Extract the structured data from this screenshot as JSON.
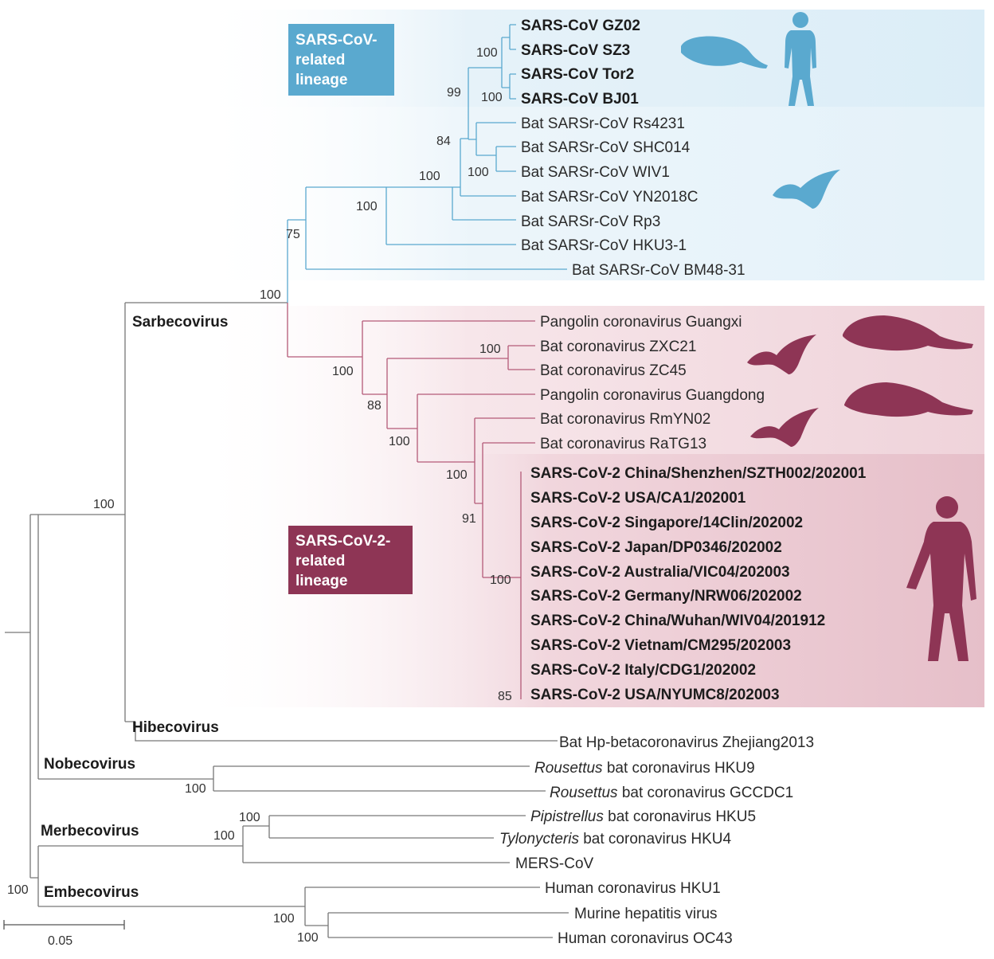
{
  "colors": {
    "sars_lineage": "#5aa9cf",
    "sars_bg": "#ddeef7",
    "sars2_lineage": "#8e3555",
    "sars2_bg": "#f3dde3",
    "sars2_bg_dark": "#ebc6cf",
    "branch_gray": "#777777"
  },
  "lineage_boxes": {
    "sars": [
      "SARS-CoV-",
      "related",
      "lineage"
    ],
    "sars2": [
      "SARS-CoV-2-",
      "related",
      "lineage"
    ]
  },
  "genera": {
    "sarbecovirus": "Sarbecovirus",
    "hibecovirus": "Hibecovirus",
    "nobecovirus": "Nobecovirus",
    "merbecovirus": "Merbecovirus",
    "embecovirus": "Embecovirus"
  },
  "leaves": {
    "gz02": "SARS-CoV GZ02",
    "sz3": "SARS-CoV SZ3",
    "tor2": "SARS-CoV Tor2",
    "bj01": "SARS-CoV BJ01",
    "rs4231": "Bat SARSr-CoV Rs4231",
    "shc014": "Bat SARSr-CoV SHC014",
    "wiv1": "Bat SARSr-CoV WIV1",
    "yn2018c": "Bat SARSr-CoV YN2018C",
    "rp3": "Bat SARSr-CoV Rp3",
    "hku3": "Bat SARSr-CoV HKU3-1",
    "bm48": "Bat SARSr-CoV BM48-31",
    "pg_guangxi": "Pangolin coronavirus Guangxi",
    "zxc21": "Bat coronavirus ZXC21",
    "zc45": "Bat coronavirus ZC45",
    "pg_guangdong": "Pangolin coronavirus Guangdong",
    "rmyn02": "Bat coronavirus RmYN02",
    "ratg13": "Bat coronavirus RaTG13",
    "s2_shenzhen": "SARS-CoV-2 China/Shenzhen/SZTH002/202001",
    "s2_usa_ca1": "SARS-CoV-2 USA/CA1/202001",
    "s2_singapore": "SARS-CoV-2 Singapore/14Clin/202002",
    "s2_japan": "SARS-CoV-2 Japan/DP0346/202002",
    "s2_australia": "SARS-CoV-2 Australia/VIC04/202003",
    "s2_germany": "SARS-CoV-2 Germany/NRW06/202002",
    "s2_wuhan": "SARS-CoV-2 China/Wuhan/WIV04/201912",
    "s2_vietnam": "SARS-CoV-2 Vietnam/CM295/202003",
    "s2_italy": "SARS-CoV-2 Italy/CDG1/202002",
    "s2_usa_nyumc8": "SARS-CoV-2 USA/NYUMC8/202003",
    "hp_beta": "Bat Hp-betacoronavirus Zhejiang2013",
    "hku9_genus": "Rousettus",
    "hku9_rest": " bat coronavirus HKU9",
    "gccdc1_genus": "Rousettus",
    "gccdc1_rest": " bat coronavirus GCCDC1",
    "hku5_genus": "Pipistrellus",
    "hku5_rest": " bat coronavirus HKU5",
    "hku4_genus": "Tylonycteris",
    "hku4_rest": " bat coronavirus HKU4",
    "mers": "MERS-CoV",
    "hku1": "Human coronavirus HKU1",
    "mhv": "Murine hepatitis virus",
    "oc43": "Human coronavirus OC43"
  },
  "bootstrap": {
    "sars_tip": "100",
    "sars_bj01": "100",
    "sars_human": "99",
    "sars_84": "84",
    "wiv1_shc014": "100",
    "sars_100a": "100",
    "sars_100b": "100",
    "sars_75": "75",
    "sarbeco_root": "100",
    "zxc21_zc45": "100",
    "pangolin_gx": "100",
    "node_88": "88",
    "node_100c": "100",
    "node_100d": "100",
    "node_91": "91",
    "sars2_clade": "100",
    "sars2_85": "85",
    "beta_root": "100",
    "nobeco": "100",
    "hku5_hku4": "100",
    "merbeco": "100",
    "outer_root": "100",
    "embeco_a": "100",
    "embeco_b": "100"
  },
  "scale_bar": {
    "label": "0.05",
    "value": 0.05
  },
  "icons": [
    "pangolin-icon",
    "human-icon",
    "bat-icon"
  ]
}
